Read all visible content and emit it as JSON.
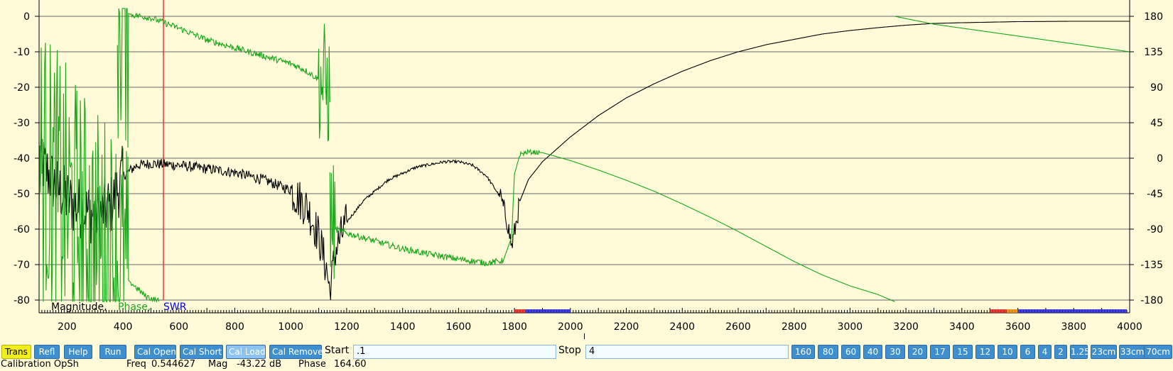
{
  "chart_data": {
    "type": "line",
    "x_range": [
      100,
      4000
    ],
    "x_ticks": [
      200,
      400,
      600,
      800,
      1000,
      1200,
      1400,
      1600,
      1800,
      2000,
      2200,
      2400,
      2600,
      2800,
      3000,
      3200,
      3400,
      3600,
      3800,
      4000
    ],
    "y_left_range": [
      -80,
      0
    ],
    "y_left_ticks": [
      0,
      -10,
      -20,
      -30,
      -40,
      -50,
      -60,
      -70,
      -80
    ],
    "y_right_range": [
      -180,
      180
    ],
    "y_right_ticks": [
      180,
      135,
      90,
      45,
      0,
      -45,
      -90,
      -135,
      -180
    ],
    "grid": true,
    "legend": [
      {
        "name": "Magnitude,",
        "color": "#000000"
      },
      {
        "name": "Phase,",
        "color": "#1aa61a"
      },
      {
        "name": "SWR",
        "color": "#0000ee"
      }
    ],
    "marker_x": 544.627,
    "colors": {
      "magnitude": "#000000",
      "phase": "#1aa61a",
      "marker": "#ff0000",
      "grid": "#666666",
      "background": "#fffbd8"
    },
    "series": [
      {
        "key": "magnitude",
        "axis": "left",
        "noise": [
          [
            100,
            400,
            9
          ],
          [
            400,
            1000,
            1.5
          ],
          [
            1000,
            1200,
            6
          ],
          [
            1200,
            1750,
            0.4
          ],
          [
            1750,
            1820,
            3
          ]
        ],
        "points": [
          [
            100,
            -40
          ],
          [
            160,
            -48
          ],
          [
            220,
            -53
          ],
          [
            300,
            -56
          ],
          [
            360,
            -53
          ],
          [
            400,
            -45
          ],
          [
            450,
            -42
          ],
          [
            500,
            -41.5
          ],
          [
            600,
            -42
          ],
          [
            700,
            -43
          ],
          [
            800,
            -44
          ],
          [
            900,
            -46
          ],
          [
            1000,
            -49
          ],
          [
            1060,
            -54
          ],
          [
            1100,
            -62
          ],
          [
            1130,
            -72
          ],
          [
            1140,
            -78
          ],
          [
            1160,
            -66
          ],
          [
            1200,
            -58
          ],
          [
            1260,
            -52
          ],
          [
            1350,
            -46
          ],
          [
            1450,
            -42.5
          ],
          [
            1550,
            -41
          ],
          [
            1600,
            -41
          ],
          [
            1650,
            -42
          ],
          [
            1700,
            -45
          ],
          [
            1750,
            -51
          ],
          [
            1775,
            -58
          ],
          [
            1790,
            -65
          ],
          [
            1800,
            -61
          ],
          [
            1820,
            -52
          ],
          [
            1850,
            -46
          ],
          [
            1900,
            -41
          ],
          [
            2000,
            -34
          ],
          [
            2100,
            -28
          ],
          [
            2200,
            -23
          ],
          [
            2300,
            -19
          ],
          [
            2400,
            -15.5
          ],
          [
            2500,
            -12.5
          ],
          [
            2600,
            -10
          ],
          [
            2700,
            -8
          ],
          [
            2800,
            -6.5
          ],
          [
            2900,
            -5
          ],
          [
            3000,
            -4
          ],
          [
            3100,
            -3.2
          ],
          [
            3200,
            -2.5
          ],
          [
            3300,
            -2
          ],
          [
            3400,
            -1.8
          ],
          [
            3600,
            -1.5
          ],
          [
            3800,
            -1.4
          ],
          [
            4000,
            -1.4
          ]
        ]
      },
      {
        "key": "phase",
        "axis": "right",
        "noise": [
          [
            100,
            420,
            180
          ],
          [
            430,
            1100,
            4
          ],
          [
            1100,
            1160,
            80
          ],
          [
            1160,
            1760,
            4
          ],
          [
            1820,
            1890,
            3
          ]
        ],
        "segments": [
          [
            [
              100,
              0
            ],
            [
              200,
              -60
            ],
            [
              300,
              -110
            ],
            [
              380,
              -130
            ],
            [
              420,
              -155
            ],
            [
              480,
              -175
            ],
            [
              530,
              -182
            ]
          ],
          [
            [
              380,
              190
            ],
            [
              430,
              182
            ],
            [
              500,
              178
            ],
            [
              600,
              165
            ],
            [
              700,
              150
            ],
            [
              800,
              140
            ],
            [
              900,
              130
            ],
            [
              1000,
              120
            ],
            [
              1050,
              112
            ],
            [
              1100,
              100
            ],
            [
              1130,
              90
            ],
            [
              1140,
              80
            ]
          ],
          [
            [
              1140,
              -70
            ],
            [
              1160,
              -90
            ],
            [
              1200,
              -95
            ],
            [
              1300,
              -105
            ],
            [
              1400,
              -115
            ],
            [
              1500,
              -122
            ],
            [
              1600,
              -128
            ],
            [
              1700,
              -133
            ],
            [
              1760,
              -130
            ],
            [
              1790,
              -100
            ],
            [
              1800,
              -20
            ],
            [
              1820,
              5
            ],
            [
              1850,
              8
            ],
            [
              1900,
              7
            ],
            [
              2000,
              -3
            ],
            [
              2100,
              -15
            ],
            [
              2200,
              -28
            ],
            [
              2300,
              -42
            ],
            [
              2400,
              -58
            ],
            [
              2500,
              -75
            ],
            [
              2600,
              -93
            ],
            [
              2700,
              -112
            ],
            [
              2800,
              -131
            ],
            [
              2900,
              -148
            ],
            [
              3000,
              -162
            ],
            [
              3100,
              -173
            ],
            [
              3160,
              -182
            ]
          ],
          [
            [
              3160,
              180
            ],
            [
              3300,
              170
            ],
            [
              3500,
              160
            ],
            [
              3700,
              150
            ],
            [
              3900,
              140
            ],
            [
              4000,
              135
            ]
          ]
        ]
      }
    ]
  },
  "toolbar": {
    "buttons": [
      "Trans",
      "Refl",
      "Help",
      "Run",
      "Cal Open",
      "Cal Short",
      "Cal Load",
      "Cal Remove"
    ],
    "start_label": "Start",
    "start_value": ".1",
    "stop_label": "Stop",
    "stop_value": "4",
    "bands": [
      "160",
      "80",
      "60",
      "40",
      "30",
      "20",
      "17",
      "15",
      "12",
      "10",
      "6",
      "4",
      "2",
      "1.25",
      "23cm",
      "33cm",
      "70cm"
    ]
  },
  "status": {
    "calibration": "Calibration OpSh",
    "freq_label": "Freq",
    "freq_value": "0.544627",
    "mag_label": "Mag",
    "mag_value": "-43.22 dB",
    "phase_label": "Phase",
    "phase_value": "164.60"
  }
}
